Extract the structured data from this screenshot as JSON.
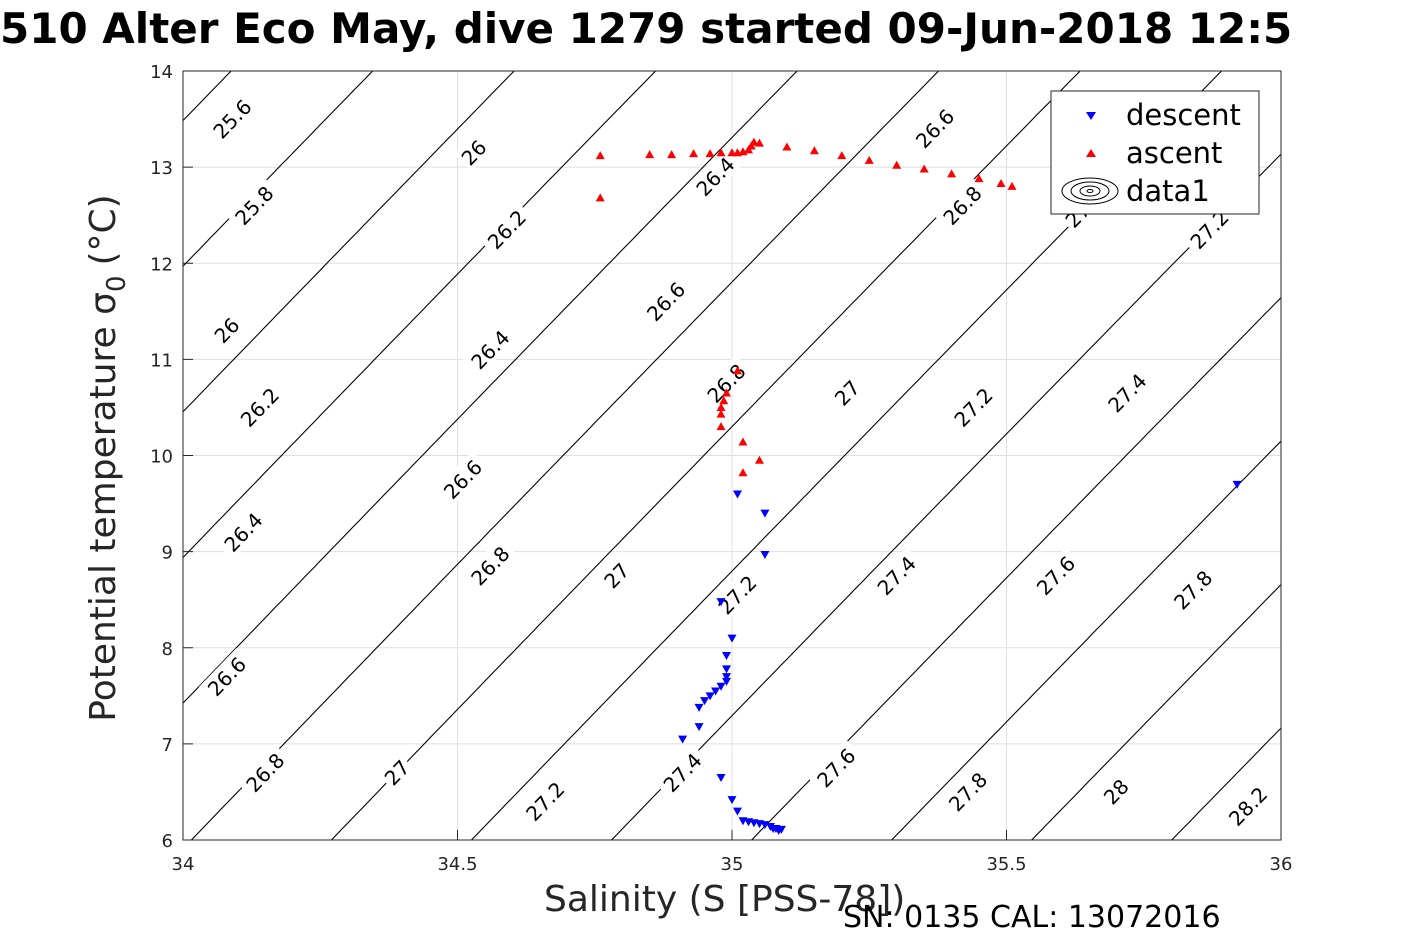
{
  "title": "510 Alter Eco May, dive 1279 started 09-Jun-2018 12:5",
  "footer": "SN: 0135  CAL: 13072016",
  "chart_data": {
    "type": "scatter",
    "xlabel": "Salinity (S [PSS-78])",
    "ylabel": "Potential temperature σ",
    "ylabel_sub": "0",
    "ylabel_unit": "(°C)",
    "xlim": [
      34,
      36
    ],
    "ylim": [
      6,
      14
    ],
    "xticks": [
      "34",
      "34.5",
      "35",
      "35.5",
      "36"
    ],
    "yticks": [
      "6",
      "7",
      "8",
      "9",
      "10",
      "11",
      "12",
      "13",
      "14"
    ],
    "grid": true,
    "legend_position": "top-right",
    "legend": [
      {
        "label": "descent",
        "marker": "triangle-down",
        "color": "#0000ff"
      },
      {
        "label": "ascent",
        "marker": "triangle-up",
        "color": "#ff0000"
      },
      {
        "label": "data1",
        "marker": "contour",
        "color": "#000000"
      }
    ],
    "contour_levels": [
      "25.6",
      "25.8",
      "26",
      "26.2",
      "26.4",
      "26.6",
      "26.8",
      "27",
      "27.2",
      "27.4",
      "27.6",
      "27.8",
      "28",
      "28.2"
    ],
    "contour_labels": [
      {
        "text": "25.6",
        "s": 34.09,
        "t": 13.5
      },
      {
        "text": "25.8",
        "s": 34.13,
        "t": 12.6
      },
      {
        "text": "26",
        "s": 34.08,
        "t": 11.3
      },
      {
        "text": "26.2",
        "s": 34.14,
        "t": 10.5
      },
      {
        "text": "26.4",
        "s": 34.11,
        "t": 9.2
      },
      {
        "text": "26.6",
        "s": 34.08,
        "t": 7.7
      },
      {
        "text": "26.8",
        "s": 34.15,
        "t": 6.7
      },
      {
        "text": "27",
        "s": 34.39,
        "t": 6.7
      },
      {
        "text": "27.2",
        "s": 34.66,
        "t": 6.4
      },
      {
        "text": "27.4",
        "s": 34.91,
        "t": 6.7
      },
      {
        "text": "27.6",
        "s": 35.19,
        "t": 6.75
      },
      {
        "text": "27.8",
        "s": 35.43,
        "t": 6.5
      },
      {
        "text": "28",
        "s": 35.7,
        "t": 6.5
      },
      {
        "text": "28.2",
        "s": 35.94,
        "t": 6.35
      },
      {
        "text": "26",
        "s": 34.53,
        "t": 13.15
      },
      {
        "text": "26.2",
        "s": 34.59,
        "t": 12.35
      },
      {
        "text": "26.4",
        "s": 34.56,
        "t": 11.1
      },
      {
        "text": "26.6",
        "s": 34.51,
        "t": 9.75
      },
      {
        "text": "26.8",
        "s": 34.56,
        "t": 8.85
      },
      {
        "text": "27",
        "s": 34.79,
        "t": 8.75
      },
      {
        "text": "27.2",
        "s": 35.01,
        "t": 8.55
      },
      {
        "text": "27.4",
        "s": 35.3,
        "t": 8.75
      },
      {
        "text": "27.6",
        "s": 35.59,
        "t": 8.75
      },
      {
        "text": "27.8",
        "s": 35.84,
        "t": 8.6
      },
      {
        "text": "26.4",
        "s": 34.97,
        "t": 12.9
      },
      {
        "text": "26.6",
        "s": 34.88,
        "t": 11.6
      },
      {
        "text": "26.8",
        "s": 34.99,
        "t": 10.75
      },
      {
        "text": "27",
        "s": 35.21,
        "t": 10.65
      },
      {
        "text": "27.2",
        "s": 35.44,
        "t": 10.5
      },
      {
        "text": "27.4",
        "s": 35.72,
        "t": 10.65
      },
      {
        "text": "26.6",
        "s": 35.37,
        "t": 13.4
      },
      {
        "text": "26.8",
        "s": 35.42,
        "t": 12.6
      },
      {
        "text": "27",
        "s": 35.63,
        "t": 12.5
      },
      {
        "text": "27.2",
        "s": 35.87,
        "t": 12.35
      }
    ],
    "series": [
      {
        "name": "descent",
        "color": "#0000ff",
        "marker": "triangle-down",
        "points": [
          [
            35.92,
            9.7
          ],
          [
            35.01,
            9.6
          ],
          [
            35.06,
            9.4
          ],
          [
            35.06,
            8.97
          ],
          [
            34.98,
            8.48
          ],
          [
            35.0,
            8.1
          ],
          [
            34.99,
            7.92
          ],
          [
            34.99,
            7.78
          ],
          [
            34.99,
            7.7
          ],
          [
            34.99,
            7.65
          ],
          [
            34.98,
            7.6
          ],
          [
            34.97,
            7.55
          ],
          [
            34.96,
            7.5
          ],
          [
            34.95,
            7.45
          ],
          [
            34.94,
            7.38
          ],
          [
            34.94,
            7.18
          ],
          [
            34.91,
            7.05
          ],
          [
            34.98,
            6.65
          ],
          [
            35.0,
            6.42
          ],
          [
            35.01,
            6.3
          ],
          [
            35.02,
            6.2
          ],
          [
            35.03,
            6.19
          ],
          [
            35.04,
            6.18
          ],
          [
            35.05,
            6.17
          ],
          [
            35.06,
            6.16
          ],
          [
            35.07,
            6.14
          ],
          [
            35.08,
            6.12
          ],
          [
            35.09,
            6.11
          ],
          [
            35.085,
            6.1
          ],
          [
            35.075,
            6.12
          ]
        ]
      },
      {
        "name": "ascent",
        "color": "#ff0000",
        "marker": "triangle-up",
        "points": [
          [
            34.76,
            12.68
          ],
          [
            34.76,
            13.12
          ],
          [
            34.85,
            13.13
          ],
          [
            34.89,
            13.13
          ],
          [
            34.93,
            13.14
          ],
          [
            34.96,
            13.14
          ],
          [
            34.98,
            13.15
          ],
          [
            35.0,
            13.15
          ],
          [
            35.01,
            13.15
          ],
          [
            35.02,
            13.16
          ],
          [
            35.03,
            13.18
          ],
          [
            35.035,
            13.22
          ],
          [
            35.04,
            13.26
          ],
          [
            35.05,
            13.25
          ],
          [
            35.1,
            13.21
          ],
          [
            35.15,
            13.17
          ],
          [
            35.2,
            13.12
          ],
          [
            35.25,
            13.07
          ],
          [
            35.3,
            13.02
          ],
          [
            35.35,
            12.98
          ],
          [
            35.4,
            12.93
          ],
          [
            35.45,
            12.88
          ],
          [
            35.49,
            12.83
          ],
          [
            35.51,
            12.8
          ],
          [
            35.01,
            10.88
          ],
          [
            34.99,
            10.65
          ],
          [
            34.985,
            10.57
          ],
          [
            34.98,
            10.5
          ],
          [
            34.98,
            10.43
          ],
          [
            34.98,
            10.3
          ],
          [
            35.02,
            10.14
          ],
          [
            35.05,
            9.95
          ],
          [
            35.02,
            9.82
          ]
        ]
      }
    ]
  }
}
